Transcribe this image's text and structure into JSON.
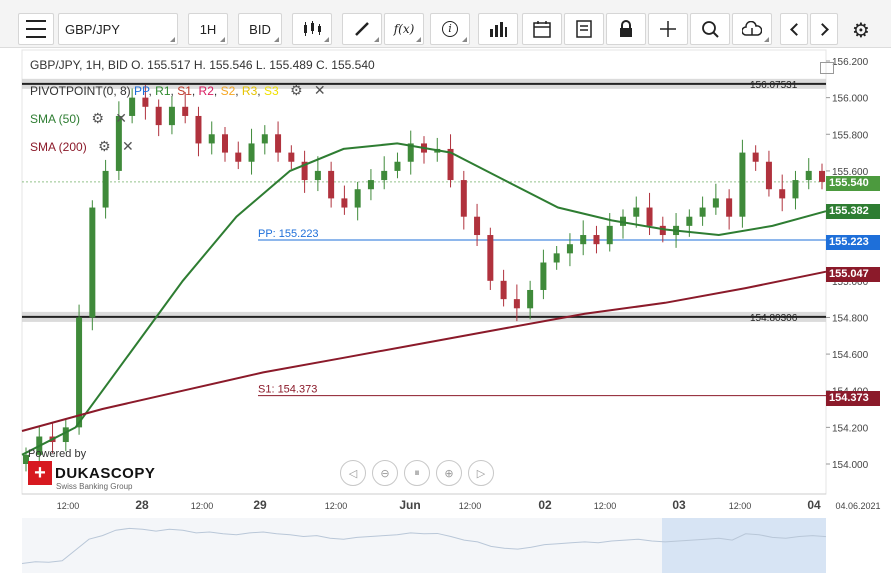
{
  "toolbar": {
    "menu_icon": "hamburger-icon",
    "symbol": "GBP/JPY",
    "timeframe": "1H",
    "price_side": "BID",
    "tools": [
      "candlestick-icon",
      "pencil-icon",
      "function-icon",
      "info-icon",
      "bar-chart-icon",
      "calendar-icon",
      "table-icon",
      "lock-icon",
      "crosshair-icon",
      "zoom-icon",
      "cloud-upload-icon",
      "chevron-left-icon",
      "chevron-right-icon",
      "gear-icon"
    ],
    "fx_label": "f(x)",
    "info_label": "i"
  },
  "legend": {
    "ohlc": "GBP/JPY, 1H, BID    O. 155.517 H. 155.546 L. 155.489 C. 155.540",
    "pivot_name": "PIVOTPOINT(0, 8)",
    "pivot_levels": [
      "PP",
      "R1",
      "S1",
      "R2",
      "S2",
      "R3",
      "S3"
    ],
    "sma50": "SMA (50)",
    "sma200": "SMA (200)"
  },
  "lines": {
    "pp_label": "PP: 155.223",
    "s1_label": "S1: 154.373",
    "top_band_label": "156.07531",
    "bottom_band_label": "154.80306"
  },
  "price_tags": {
    "current": "155.540",
    "sma50": "155.382",
    "pp": "155.223",
    "sma200": "155.047",
    "s1": "154.373"
  },
  "colors": {
    "up_candle": "#3f8a3a",
    "down_candle": "#b0323d",
    "sma50": "#2e7d32",
    "sma200": "#8b1a2a",
    "pp": "#1e6fd9",
    "s1": "#8b1a2a"
  },
  "logo": {
    "powered": "Powered by",
    "name": "DUKASCOPY",
    "sub": "Swiss Banking Group"
  },
  "chart_data": {
    "type": "candlestick",
    "symbol": "GBP/JPY",
    "timeframe": "1H",
    "y_ticks": [
      "156.200",
      "156.000",
      "155.800",
      "155.600",
      "155.400",
      "155.200",
      "155.000",
      "154.800",
      "154.600",
      "154.400",
      "154.200",
      "154.000"
    ],
    "x_ticks": [
      "12:00",
      "28",
      "12:00",
      "29",
      "12:00",
      "Jun",
      "12:00",
      "02",
      "12:00",
      "03",
      "12:00",
      "04",
      "04.06.2021"
    ],
    "ylim": [
      153.85,
      156.25
    ],
    "candles_close_approx": [
      154.05,
      154.15,
      154.12,
      154.2,
      154.8,
      155.4,
      155.6,
      155.9,
      156.0,
      155.95,
      155.85,
      155.95,
      155.9,
      155.75,
      155.8,
      155.7,
      155.65,
      155.75,
      155.8,
      155.7,
      155.65,
      155.55,
      155.6,
      155.45,
      155.4,
      155.5,
      155.55,
      155.6,
      155.65,
      155.75,
      155.7,
      155.72,
      155.55,
      155.35,
      155.25,
      155.0,
      154.9,
      154.85,
      154.95,
      155.1,
      155.15,
      155.2,
      155.25,
      155.2,
      155.3,
      155.35,
      155.4,
      155.3,
      155.25,
      155.3,
      155.35,
      155.4,
      155.45,
      155.35,
      155.7,
      155.65,
      155.5,
      155.45,
      155.55,
      155.6,
      155.54
    ],
    "sma50_approx": [
      154.05,
      154.2,
      154.6,
      155.0,
      155.35,
      155.6,
      155.72,
      155.75,
      155.7,
      155.55,
      155.4,
      155.33,
      155.28,
      155.25,
      155.3,
      155.38
    ],
    "sma200_approx": [
      154.18,
      154.3,
      154.4,
      154.5,
      154.58,
      154.66,
      154.74,
      154.82,
      154.88,
      154.96,
      155.05
    ],
    "pivot_pp": 155.223,
    "pivot_s1": 154.373,
    "band_top": 156.07531,
    "band_bottom": 154.80306
  }
}
